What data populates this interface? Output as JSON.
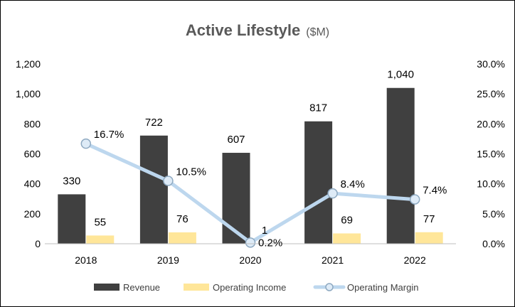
{
  "chart_data": {
    "type": "bar",
    "title": "Active Lifestyle",
    "subtitle": "($M)",
    "categories": [
      "2018",
      "2019",
      "2020",
      "2021",
      "2022"
    ],
    "series": [
      {
        "name": "Revenue",
        "type": "bar",
        "axis": "left",
        "color": "#404040",
        "values": [
          330,
          722,
          607,
          817,
          1040
        ],
        "labels": [
          "330",
          "722",
          "607",
          "817",
          "1,040"
        ]
      },
      {
        "name": "Operating Income",
        "type": "bar",
        "axis": "left",
        "color": "#FFE699",
        "values": [
          55,
          76,
          1,
          69,
          77
        ],
        "labels": [
          "55",
          "76",
          "1",
          "69",
          "77"
        ]
      },
      {
        "name": "Operating Margin",
        "type": "line",
        "axis": "right",
        "color": "#BDD7EE",
        "marker_fill": "#DEEBF7",
        "marker_stroke": "#8EA9C1",
        "values": [
          16.7,
          10.5,
          0.2,
          8.4,
          7.4
        ],
        "labels": [
          "16.7%",
          "10.5%",
          "0.2%",
          "8.4%",
          "7.4%"
        ]
      }
    ],
    "y_left": {
      "ylim": [
        0,
        1200
      ],
      "ticks": [
        0,
        200,
        400,
        600,
        800,
        1000,
        1200
      ],
      "tick_labels": [
        "0",
        "200",
        "400",
        "600",
        "800",
        "1,000",
        "1,200"
      ]
    },
    "y_right": {
      "ylim": [
        0,
        30
      ],
      "ticks": [
        0,
        5,
        10,
        15,
        20,
        25,
        30
      ],
      "tick_labels": [
        "0.0%",
        "5.0%",
        "10.0%",
        "15.0%",
        "20.0%",
        "25.0%",
        "30.0%"
      ]
    },
    "xlabel": "",
    "ylabel": "",
    "grid": false,
    "legend_position": "bottom"
  }
}
